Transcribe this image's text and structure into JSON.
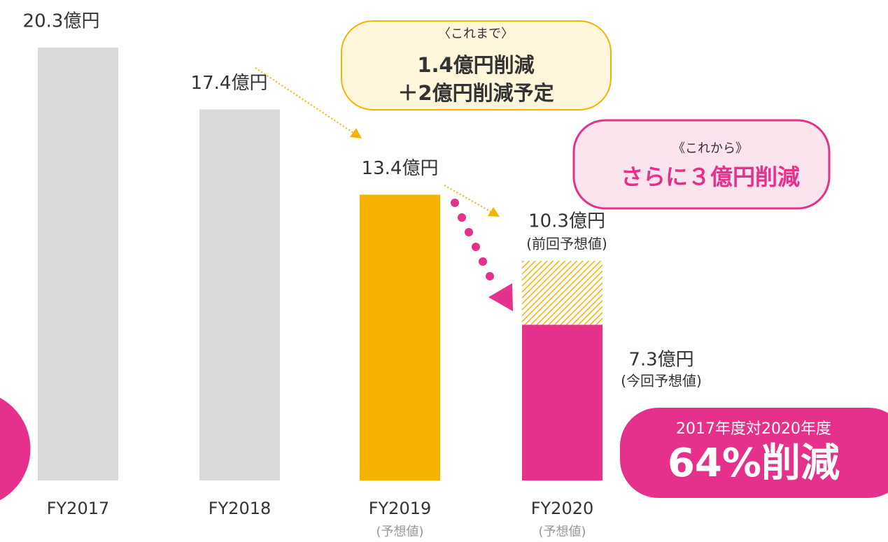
{
  "chart_data": {
    "type": "bar",
    "categories": [
      "FY2017",
      "FY2018",
      "FY2019",
      "FY2020"
    ],
    "category_notes": [
      null,
      null,
      "(予想値)",
      "(予想値)"
    ],
    "values": [
      20.3,
      17.4,
      13.4,
      7.3
    ],
    "value_labels": [
      "20.3億円",
      "17.4億円",
      "13.4億円",
      "7.3億円"
    ],
    "colors": [
      "#d9d9d9",
      "#d9d9d9",
      "#f5b300",
      "#e5318b"
    ],
    "current_forecast_note": "(今回予想値)",
    "previous_forecast": {
      "value": 10.3,
      "label": "10.3億円",
      "note": "(前回予想値)",
      "color": "#f5b300"
    },
    "ylim": [
      0,
      20.3
    ],
    "callouts": [
      {
        "lines": [
          "〈これまで〉",
          "1.4億円削減",
          "＋2億円削減予定"
        ]
      },
      {
        "lines": [
          "《これから》",
          "さらに３億円削減"
        ]
      },
      {
        "lines": [
          "2017年度対2020年度",
          "64%削減"
        ]
      }
    ]
  }
}
